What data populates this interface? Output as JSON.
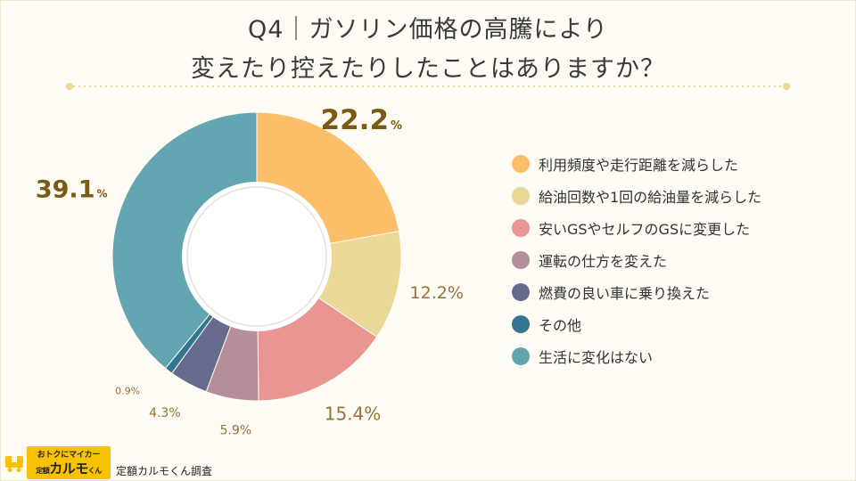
{
  "page": {
    "title_line1": "Q4｜ガソリン価格の高騰により",
    "title_line2": "変えたり控えたりしたことはありますか？"
  },
  "footer": {
    "logo_tagline": "おトクにマイカー",
    "logo_prefix": "定額",
    "logo_name": "カルモ",
    "logo_suffix": "くん",
    "credit": "定額カルモくん調査"
  },
  "chart_data": {
    "type": "pie",
    "variant": "donut",
    "title": "Q4｜ガソリン価格の高騰により変えたり控えたりしたことはありますか？",
    "unit": "%",
    "legend_position": "right",
    "slices": [
      {
        "label": "利用頻度や走行距離を減らした",
        "value": 22.2,
        "display": "22.2",
        "color": "#fdbe6a"
      },
      {
        "label": "給油回数や1回の給油量を減らした",
        "value": 12.2,
        "display": "12.2%",
        "color": "#ead896"
      },
      {
        "label": "安いGSやセルフのGSに変更した",
        "value": 15.4,
        "display": "15.4%",
        "color": "#e99591"
      },
      {
        "label": "運転の仕方を変えた",
        "value": 5.9,
        "display": "5.9%",
        "color": "#b68e9a"
      },
      {
        "label": "燃費の良い車に乗り換えた",
        "value": 4.3,
        "display": "4.3%",
        "color": "#676b8d"
      },
      {
        "label": "その他",
        "value": 0.9,
        "display": "0.9%",
        "color": "#337690"
      },
      {
        "label": "生活に変化はない",
        "value": 39.1,
        "display": "39.1",
        "color": "#63a6b1"
      }
    ]
  }
}
